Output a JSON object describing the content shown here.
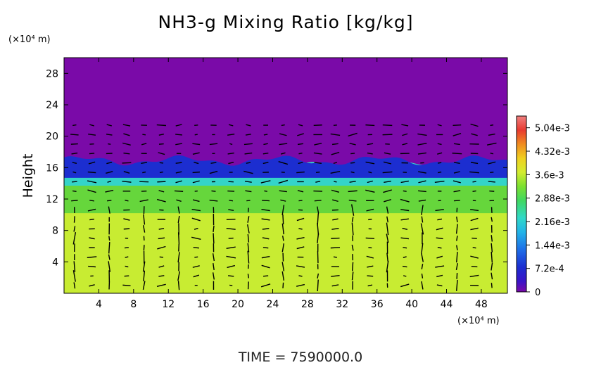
{
  "chart_data": {
    "type": "heatmap",
    "title": "NH3-g Mixing Ratio [kg/kg]",
    "ylabel": "Height",
    "y_unit": "(×10⁴ m)",
    "x_unit": "(×10⁴ m)",
    "x_ticks": [
      4,
      8,
      12,
      16,
      20,
      24,
      28,
      32,
      36,
      40,
      44,
      48
    ],
    "y_ticks": [
      4,
      8,
      12,
      16,
      20,
      24,
      28
    ],
    "xlim": [
      0,
      51
    ],
    "ylim": [
      0,
      30
    ],
    "colorbar": {
      "ticks": [
        "5.04e-3",
        "4.32e-3",
        "3.6e-3",
        "2.88e-3",
        "2.16e-3",
        "1.44e-3",
        "7.2e-4",
        "0"
      ],
      "tick_values": [
        0.00504,
        0.00432,
        0.0036,
        0.00288,
        0.00216,
        0.00144,
        0.00072,
        0
      ],
      "range": [
        0,
        0.0054
      ]
    },
    "field": {
      "upper_value": 0,
      "lower_value": 0.0034,
      "boundary_height": 16.5,
      "transition_layer": [
        13.5,
        17.5
      ],
      "mid_layer_value": 0.0028
    },
    "has_wind_vectors": true,
    "colors": {
      "background_purple": "#7a0aa8",
      "lower_yellowgreen": "#c8ec32",
      "mid_green": "#6ad838",
      "cyan": "#30d8d8",
      "blue": "#1c2ed0"
    }
  },
  "footer": {
    "time_label": "TIME  =  7590000.0"
  }
}
